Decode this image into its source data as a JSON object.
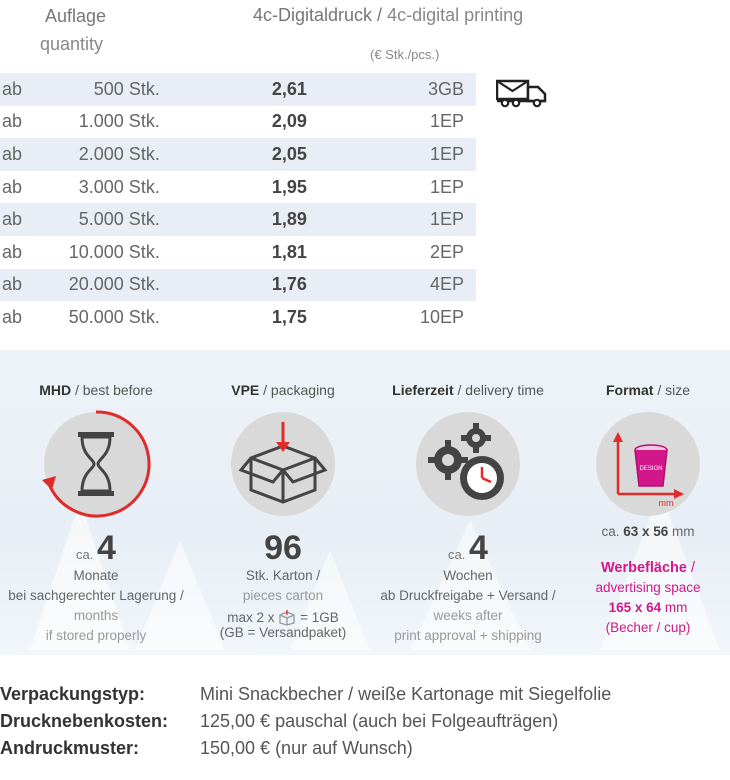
{
  "header": {
    "quantity_de": "Auflage",
    "quantity_en": "quantity",
    "print_title_de": "4c-Digitaldruck",
    "print_sep": " / ",
    "print_title_en": "4c-digital printing",
    "unit_note": "(€ Stk./pcs.)"
  },
  "price_rows": [
    {
      "prefix": "ab",
      "qty": "500 Stk.",
      "price": "2,61",
      "code": "3GB"
    },
    {
      "prefix": "ab",
      "qty": "1.000 Stk.",
      "price": "2,09",
      "code": "1EP"
    },
    {
      "prefix": "ab",
      "qty": "2.000 Stk.",
      "price": "2,05",
      "code": "1EP"
    },
    {
      "prefix": "ab",
      "qty": "3.000 Stk.",
      "price": "1,95",
      "code": "1EP"
    },
    {
      "prefix": "ab",
      "qty": "5.000 Stk.",
      "price": "1,89",
      "code": "1EP"
    },
    {
      "prefix": "ab",
      "qty": "10.000 Stk.",
      "price": "1,81",
      "code": "2EP"
    },
    {
      "prefix": "ab",
      "qty": "20.000 Stk.",
      "price": "1,76",
      "code": "4EP"
    },
    {
      "prefix": "ab",
      "qty": "50.000 Stk.",
      "price": "1,75",
      "code": "10EP"
    }
  ],
  "mhd": {
    "title_de": "MHD",
    "title_en": " / best before",
    "ca": "ca.",
    "value": "4",
    "line1": "Monate",
    "line2": "bei sachgerechter Lagerung /",
    "line3": "months",
    "line4": "if stored properly"
  },
  "vpe": {
    "title_de": "VPE",
    "title_en": " / packaging",
    "value": "96",
    "line1": "Stk. Karton /",
    "line2": "pieces carton",
    "line3": "max 2 x",
    "line3b": "= 1GB",
    "line4": "(GB = Versandpaket)"
  },
  "lieferzeit": {
    "title_de": "Lieferzeit",
    "title_en": " / delivery time",
    "ca": "ca.",
    "value": "4",
    "line1": "Wochen",
    "line2": "ab Druckfreigabe + Versand /",
    "line3": "weeks after",
    "line4": "print approval + shipping"
  },
  "format": {
    "title_de": "Format",
    "title_en": " / size",
    "cup_label": "DESIGN",
    "mm_label": "mm",
    "size_prefix": "ca.",
    "size_value": "63 x 56",
    "size_unit": " mm",
    "ad_title_de": "Werbefläche",
    "ad_title_sep": " /",
    "ad_title_en": "advertising space",
    "ad_size_value": "165 x 64",
    "ad_size_unit": " mm",
    "ad_note": "(Becher / cup)"
  },
  "details": [
    {
      "label": "Verpackungstyp:",
      "value": "Mini Snackbecher / weiße Kartonage mit Siegelfolie"
    },
    {
      "label": "Drucknebenkosten:",
      "value": "125,00 € pauschal (auch bei Folgeaufträgen)"
    },
    {
      "label": "Andruckmuster:",
      "value": "150,00 € (nur auf Wunsch)"
    }
  ],
  "colors": {
    "accent_red": "#e02b2b",
    "accent_pink": "#d1178a",
    "row_shade": "#e9edf6"
  }
}
